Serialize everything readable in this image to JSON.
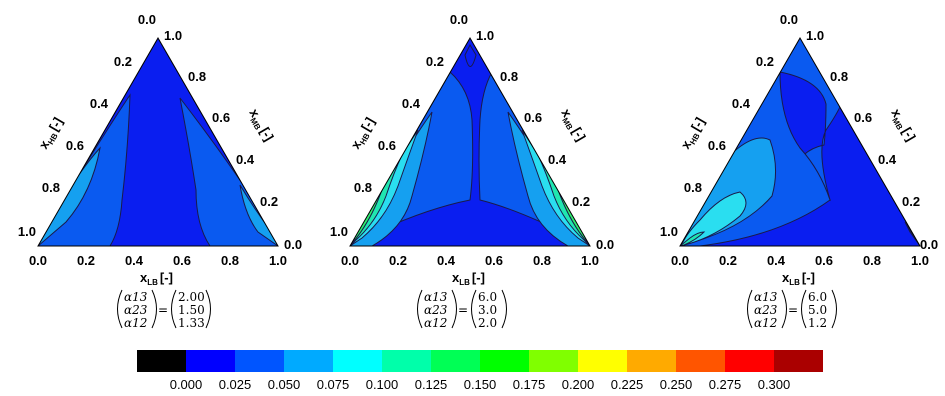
{
  "chart_data": [
    {
      "type": "ternary-contour",
      "xlabel": "x",
      "xlabel_sub": "LB",
      "xlabel_unit": "[-]",
      "left_label": "x",
      "left_label_sub": "HB",
      "left_label_unit": "[-]",
      "right_label": "x",
      "right_label_sub": "MB",
      "right_label_unit": "[-]",
      "bottom_ticks": [
        "0.0",
        "0.2",
        "0.4",
        "0.6",
        "0.8",
        "1.0"
      ],
      "left_ticks": [
        "0.0",
        "0.2",
        "0.4",
        "0.6",
        "0.8",
        "1.0"
      ],
      "right_ticks": [
        "1.0",
        "0.8",
        "0.6",
        "0.4",
        "0.2",
        "0.0"
      ],
      "params": {
        "names": [
          "α13",
          "α23",
          "α12"
        ],
        "values": [
          "2.00",
          "1.50",
          "1.33"
        ]
      }
    },
    {
      "type": "ternary-contour",
      "xlabel": "x",
      "xlabel_sub": "LB",
      "xlabel_unit": "[-]",
      "left_label": "x",
      "left_label_sub": "HB",
      "left_label_unit": "[-]",
      "right_label": "x",
      "right_label_sub": "MB",
      "right_label_unit": "[-]",
      "bottom_ticks": [
        "0.0",
        "0.2",
        "0.4",
        "0.6",
        "0.8",
        "1.0"
      ],
      "left_ticks": [
        "0.0",
        "0.2",
        "0.4",
        "0.6",
        "0.8",
        "1.0"
      ],
      "right_ticks": [
        "1.0",
        "0.8",
        "0.6",
        "0.4",
        "0.2",
        "0.0"
      ],
      "params": {
        "names": [
          "α13",
          "α23",
          "α12"
        ],
        "values": [
          "6.0",
          "3.0",
          "2.0"
        ]
      }
    },
    {
      "type": "ternary-contour",
      "xlabel": "x",
      "xlabel_sub": "LB",
      "xlabel_unit": "[-]",
      "left_label": "x",
      "left_label_sub": "HB",
      "left_label_unit": "[-]",
      "right_label": "x",
      "right_label_sub": "MB",
      "right_label_unit": "[-]",
      "bottom_ticks": [
        "0.0",
        "0.2",
        "0.4",
        "0.6",
        "0.8",
        "1.0"
      ],
      "left_ticks": [
        "0.0",
        "0.2",
        "0.4",
        "0.6",
        "0.8",
        "1.0"
      ],
      "right_ticks": [
        "1.0",
        "0.8",
        "0.6",
        "0.4",
        "0.2",
        "0.0"
      ],
      "params": {
        "names": [
          "α13",
          "α23",
          "α12"
        ],
        "values": [
          "6.0",
          "5.0",
          "1.2"
        ]
      }
    }
  ],
  "colorbar": {
    "colors": [
      "#000000",
      "#0000ff",
      "#0055ff",
      "#00aaff",
      "#00ffff",
      "#00ffaa",
      "#00ff55",
      "#00ff00",
      "#80ff00",
      "#ffff00",
      "#ffaa00",
      "#ff5500",
      "#ff0000",
      "#aa0000"
    ],
    "labels": [
      "0.000",
      "0.025",
      "0.050",
      "0.075",
      "0.100",
      "0.125",
      "0.150",
      "0.175",
      "0.200",
      "0.225",
      "0.250",
      "0.275",
      "0.300"
    ]
  }
}
